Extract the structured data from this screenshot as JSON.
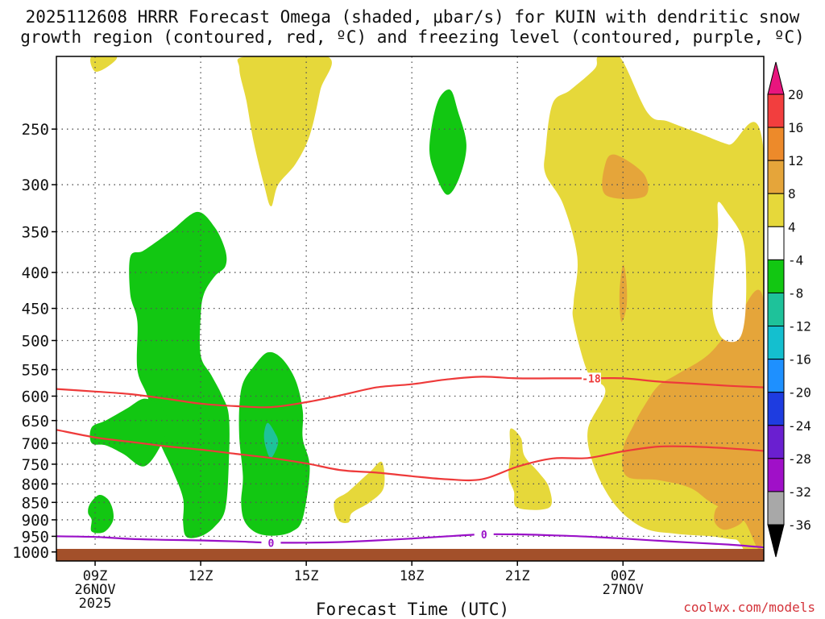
{
  "chart_data": {
    "type": "filled-contour",
    "title_line1": "2025112608 HRRR Forecast Omega (shaded, μbar/s) for KUIN with dendritic snow",
    "title_line2": "growth region (contoured, red, ºC) and freezing level (contoured, purple, ºC)",
    "xlabel": "Forecast Time (UTC)",
    "credit": "coolwx.com/models",
    "x_domain_hours": [
      7.9,
      28.0
    ],
    "x_ticks": [
      {
        "hour": 9,
        "label": "09Z",
        "date": "26NOV",
        "year": "2025"
      },
      {
        "hour": 12,
        "label": "12Z"
      },
      {
        "hour": 15,
        "label": "15Z"
      },
      {
        "hour": 18,
        "label": "18Z"
      },
      {
        "hour": 21,
        "label": "21Z"
      },
      {
        "hour": 24,
        "label": "00Z",
        "date": "27NOV"
      }
    ],
    "y_axis": {
      "scale": "log-pressure",
      "unit": "hPa",
      "ylim": [
        1030,
        197
      ]
    },
    "y_ticks": [
      250,
      300,
      350,
      400,
      450,
      500,
      550,
      600,
      650,
      700,
      750,
      800,
      850,
      900,
      950,
      1000
    ],
    "terrain_pressure": 990,
    "colorbar": {
      "labels": [
        "20",
        "16",
        "12",
        "8",
        "4",
        "-4",
        "-8",
        "-12",
        "-16",
        "-20",
        "-24",
        "-28",
        "-32",
        "-36"
      ],
      "bands": [
        {
          "lo": 16,
          "hi": 20,
          "color": "#f23e3e"
        },
        {
          "lo": 12,
          "hi": 16,
          "color": "#ed8a2a"
        },
        {
          "lo": 8,
          "hi": 12,
          "color": "#e5a53a"
        },
        {
          "lo": 4,
          "hi": 8,
          "color": "#e6d83a"
        },
        {
          "lo": -4,
          "hi": 4,
          "color": "#ffffff"
        },
        {
          "lo": -8,
          "hi": -4,
          "color": "#12c712"
        },
        {
          "lo": -12,
          "hi": -8,
          "color": "#1ec29a"
        },
        {
          "lo": -16,
          "hi": -12,
          "color": "#14bfcf"
        },
        {
          "lo": -20,
          "hi": -16,
          "color": "#1e90ff"
        },
        {
          "lo": -24,
          "hi": -20,
          "color": "#1e3ce0"
        },
        {
          "lo": -28,
          "hi": -24,
          "color": "#6a1fd0"
        },
        {
          "lo": -32,
          "hi": -28,
          "color": "#a010c8"
        },
        {
          "lo": -36,
          "hi": -32,
          "color": "#a8a8a8"
        }
      ],
      "over_color": "#e8157e",
      "under_color": "#000000"
    },
    "shaded_regions": [
      {
        "level": "4 to 8",
        "color": "#e6d83a",
        "points": [
          [
            8.9,
            197
          ],
          [
            9.6,
            197
          ],
          [
            9.4,
            203
          ],
          [
            9.0,
            207
          ]
        ]
      },
      {
        "level": "4 to 8",
        "color": "#e6d83a",
        "points": [
          [
            13.3,
            197
          ],
          [
            15.6,
            197
          ],
          [
            15.4,
            220
          ],
          [
            15.1,
            255
          ],
          [
            14.7,
            280
          ],
          [
            14.2,
            300
          ],
          [
            14.0,
            322
          ],
          [
            13.8,
            300
          ],
          [
            13.5,
            260
          ],
          [
            13.3,
            228
          ],
          [
            13.1,
            205
          ]
        ]
      },
      {
        "level": "-8 to -4",
        "color": "#12c712",
        "points": [
          [
            18.8,
            225
          ],
          [
            19.1,
            220
          ],
          [
            19.3,
            235
          ],
          [
            19.55,
            263
          ],
          [
            19.35,
            293
          ],
          [
            19.0,
            310
          ],
          [
            18.65,
            288
          ],
          [
            18.5,
            268
          ],
          [
            18.6,
            242
          ]
        ]
      },
      {
        "level": "-8 to -4",
        "color": "#12c712",
        "points": [
          [
            10.0,
            380
          ],
          [
            10.35,
            373
          ],
          [
            10.8,
            360
          ],
          [
            11.2,
            348
          ],
          [
            11.9,
            328
          ],
          [
            12.4,
            345
          ],
          [
            12.7,
            372
          ],
          [
            12.7,
            392
          ],
          [
            12.4,
            405
          ],
          [
            12.1,
            428
          ],
          [
            12.0,
            460
          ],
          [
            12.0,
            525
          ],
          [
            12.3,
            560
          ],
          [
            12.6,
            598
          ],
          [
            12.8,
            640
          ],
          [
            12.8,
            745
          ],
          [
            12.7,
            868
          ],
          [
            12.4,
            920
          ],
          [
            12.0,
            950
          ],
          [
            11.6,
            952
          ],
          [
            11.5,
            910
          ],
          [
            11.5,
            840
          ],
          [
            11.2,
            765
          ],
          [
            10.8,
            690
          ],
          [
            10.5,
            603
          ],
          [
            10.2,
            550
          ],
          [
            10.2,
            470
          ],
          [
            10.0,
            430
          ]
        ]
      },
      {
        "level": "-8 to -4",
        "color": "#12c712",
        "points": [
          [
            8.9,
            665
          ],
          [
            9.3,
            650
          ],
          [
            9.9,
            625
          ],
          [
            10.4,
            605
          ],
          [
            10.85,
            620
          ],
          [
            11.05,
            650
          ],
          [
            10.9,
            700
          ],
          [
            10.4,
            755
          ],
          [
            9.8,
            725
          ],
          [
            9.3,
            705
          ],
          [
            8.9,
            700
          ]
        ]
      },
      {
        "level": "-8 to -4",
        "color": "#12c712",
        "points": [
          [
            8.9,
            900
          ],
          [
            8.8,
            880
          ],
          [
            8.85,
            855
          ],
          [
            9.1,
            830
          ],
          [
            9.35,
            840
          ],
          [
            9.5,
            870
          ],
          [
            9.5,
            905
          ],
          [
            9.25,
            937
          ],
          [
            8.9,
            935
          ]
        ]
      },
      {
        "level": "-8 to -4",
        "color": "#12c712",
        "points": [
          [
            13.9,
            520
          ],
          [
            14.3,
            530
          ],
          [
            14.7,
            570
          ],
          [
            14.9,
            630
          ],
          [
            14.9,
            690
          ],
          [
            15.1,
            760
          ],
          [
            14.9,
            895
          ],
          [
            14.6,
            935
          ],
          [
            14.1,
            948
          ],
          [
            13.6,
            940
          ],
          [
            13.25,
            905
          ],
          [
            13.15,
            850
          ],
          [
            13.2,
            780
          ],
          [
            13.1,
            690
          ],
          [
            13.1,
            620
          ],
          [
            13.2,
            575
          ],
          [
            13.5,
            545
          ]
        ]
      },
      {
        "level": "-12 to -8",
        "color": "#1ec29a",
        "points": [
          [
            13.9,
            655
          ],
          [
            14.1,
            675
          ],
          [
            14.2,
            700
          ],
          [
            14.0,
            735
          ],
          [
            13.85,
            710
          ],
          [
            13.8,
            680
          ]
        ]
      },
      {
        "level": "4 to 8",
        "color": "#e6d83a",
        "points": [
          [
            16.8,
            770
          ],
          [
            17.15,
            745
          ],
          [
            17.2,
            810
          ],
          [
            16.8,
            850
          ],
          [
            16.3,
            880
          ],
          [
            16.2,
            908
          ],
          [
            15.9,
            900
          ],
          [
            15.8,
            848
          ],
          [
            16.2,
            820
          ]
        ]
      },
      {
        "level": "4 to 8",
        "color": "#e6d83a",
        "points": [
          [
            20.8,
            668
          ],
          [
            21.1,
            688
          ],
          [
            21.2,
            730
          ],
          [
            21.6,
            770
          ],
          [
            21.9,
            810
          ],
          [
            21.9,
            865
          ],
          [
            21.0,
            865
          ],
          [
            20.9,
            820
          ],
          [
            20.75,
            780
          ],
          [
            20.8,
            720
          ]
        ]
      },
      {
        "level": "4 to 8",
        "color": "#e6d83a",
        "points": [
          [
            23.3,
            197
          ],
          [
            23.9,
            197
          ],
          [
            24.7,
            237
          ],
          [
            25.3,
            244
          ],
          [
            26.3,
            255
          ],
          [
            27.0,
            263
          ],
          [
            28.0,
            270
          ],
          [
            28.0,
            958
          ],
          [
            27.2,
            960
          ],
          [
            26.5,
            950
          ],
          [
            25.5,
            942
          ],
          [
            24.6,
            925
          ],
          [
            23.8,
            860
          ],
          [
            23.2,
            760
          ],
          [
            23.0,
            670
          ],
          [
            23.5,
            590
          ],
          [
            23.0,
            555
          ],
          [
            22.6,
            470
          ],
          [
            22.6,
            440
          ],
          [
            22.7,
            380
          ],
          [
            22.3,
            320
          ],
          [
            21.8,
            290
          ],
          [
            21.8,
            268
          ],
          [
            22.0,
            230
          ],
          [
            22.5,
            220
          ],
          [
            23.2,
            205
          ]
        ]
      },
      {
        "level": "8 to 12",
        "color": "#e5a53a",
        "points": [
          [
            23.5,
            280
          ],
          [
            23.8,
            272
          ],
          [
            24.6,
            290
          ],
          [
            24.6,
            312
          ],
          [
            23.5,
            310
          ]
        ]
      },
      {
        "level": "8 to 12",
        "color": "#e5a53a",
        "points": [
          [
            23.9,
            428
          ],
          [
            24.0,
            390
          ],
          [
            24.1,
            412
          ],
          [
            24.1,
            448
          ],
          [
            23.95,
            470
          ]
        ]
      },
      {
        "level": "8 to 12",
        "color": "#e5a53a",
        "points": [
          [
            28.0,
            440
          ],
          [
            28.0,
            950
          ],
          [
            27.4,
            900
          ],
          [
            26.5,
            850
          ],
          [
            25.9,
            810
          ],
          [
            25.0,
            790
          ],
          [
            24.1,
            780
          ],
          [
            24.0,
            715
          ],
          [
            24.3,
            660
          ],
          [
            24.6,
            620
          ],
          [
            25.0,
            580
          ],
          [
            25.5,
            560
          ],
          [
            26.4,
            525
          ],
          [
            27.1,
            480
          ]
        ]
      },
      {
        "level": "8 to 12",
        "color": "#e5a53a",
        "points": [
          [
            26.7,
            862
          ],
          [
            27.2,
            870
          ],
          [
            27.4,
            905
          ],
          [
            26.9,
            930
          ],
          [
            26.6,
            905
          ]
        ]
      },
      {
        "level": "-4 to 4",
        "color": "#ffffff",
        "points": [
          [
            26.7,
            318
          ],
          [
            26.95,
            328
          ],
          [
            27.4,
            358
          ],
          [
            27.5,
            410
          ],
          [
            27.45,
            470
          ],
          [
            27.25,
            500
          ],
          [
            26.8,
            495
          ],
          [
            26.55,
            455
          ],
          [
            26.6,
            400
          ],
          [
            26.7,
            345
          ]
        ]
      }
    ],
    "red_contours": [
      {
        "label": "",
        "points": [
          [
            7.9,
            586
          ],
          [
            9.0,
            591
          ],
          [
            10.0,
            596
          ],
          [
            11.0,
            605
          ],
          [
            12.0,
            615
          ],
          [
            13.0,
            620
          ],
          [
            14.0,
            622
          ],
          [
            15.0,
            612
          ],
          [
            16.0,
            598
          ],
          [
            17.0,
            583
          ],
          [
            18.0,
            577
          ],
          [
            19.0,
            568
          ],
          [
            20.0,
            563
          ],
          [
            21.0,
            566
          ],
          [
            22.0,
            566
          ],
          [
            23.0,
            566
          ],
          [
            24.0,
            566
          ],
          [
            25.0,
            572
          ],
          [
            26.0,
            576
          ],
          [
            27.0,
            580
          ],
          [
            28.0,
            583
          ]
        ]
      },
      {
        "label": "-18",
        "label_hour": 23.1,
        "label_pressure": 566
      },
      {
        "label": "",
        "points": [
          [
            7.9,
            670
          ],
          [
            9.0,
            687
          ],
          [
            10.0,
            697
          ],
          [
            11.0,
            707
          ],
          [
            12.0,
            715
          ],
          [
            13.0,
            725
          ],
          [
            14.0,
            735
          ],
          [
            15.0,
            748
          ],
          [
            16.0,
            765
          ],
          [
            17.0,
            771
          ],
          [
            18.0,
            780
          ],
          [
            19.0,
            788
          ],
          [
            20.0,
            788
          ],
          [
            21.0,
            756
          ],
          [
            22.0,
            736
          ],
          [
            23.0,
            735
          ],
          [
            24.0,
            719
          ],
          [
            25.0,
            708
          ],
          [
            26.0,
            708
          ],
          [
            27.0,
            712
          ],
          [
            28.0,
            718
          ]
        ]
      }
    ],
    "purple_contours": [
      {
        "label": "0",
        "label_hour": 14.0,
        "label_pressure": 970,
        "points": [
          [
            7.9,
            950
          ],
          [
            9.0,
            952
          ],
          [
            10.0,
            958
          ],
          [
            11.0,
            961
          ],
          [
            12.0,
            963
          ],
          [
            13.0,
            966
          ],
          [
            14.0,
            970
          ],
          [
            15.0,
            970
          ],
          [
            16.0,
            968
          ],
          [
            17.0,
            963
          ],
          [
            18.0,
            957
          ],
          [
            19.0,
            950
          ],
          [
            20.0,
            944
          ],
          [
            21.0,
            944
          ],
          [
            22.0,
            947
          ],
          [
            23.0,
            951
          ],
          [
            24.0,
            957
          ],
          [
            25.0,
            964
          ],
          [
            26.0,
            970
          ],
          [
            27.0,
            976
          ],
          [
            28.0,
            985
          ]
        ]
      },
      {
        "label": "0",
        "label_hour": 20.05,
        "label_pressure": 944
      }
    ]
  }
}
